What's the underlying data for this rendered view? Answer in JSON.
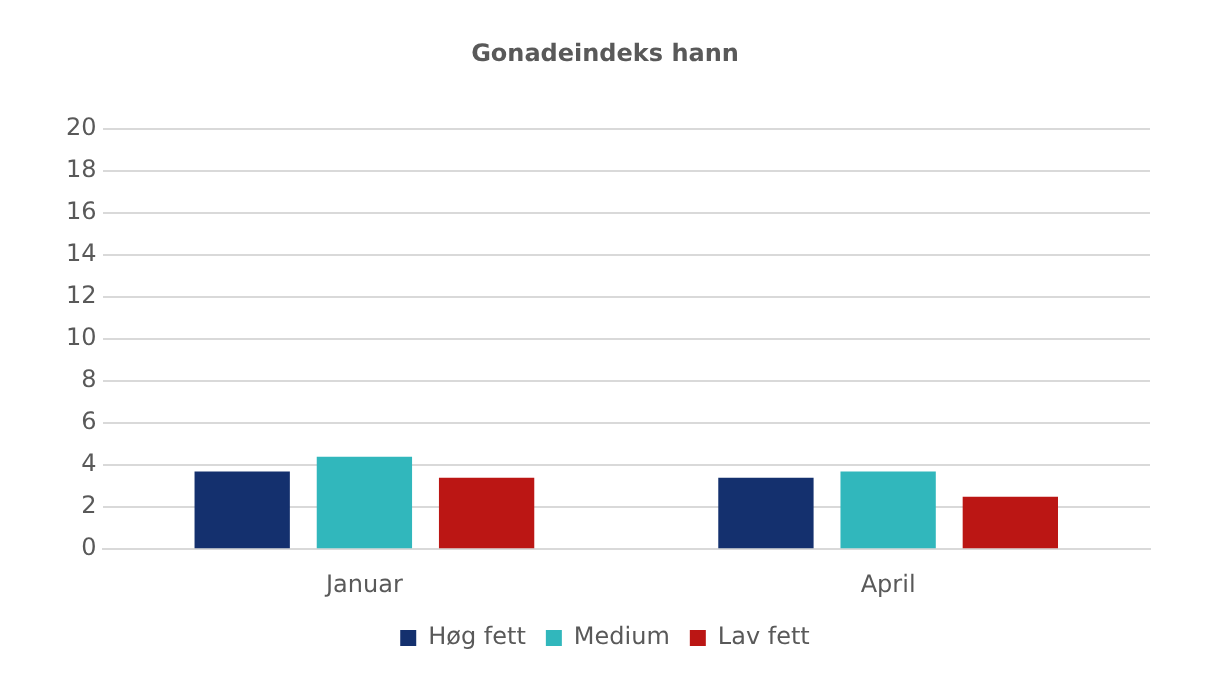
{
  "chart_data": {
    "type": "bar",
    "title": "Gonadeindeks hann",
    "categories": [
      "Januar",
      "April"
    ],
    "series": [
      {
        "name": "Høg fett",
        "color": "#14306e",
        "values": [
          3.7,
          3.4
        ]
      },
      {
        "name": "Medium",
        "color": "#31b7bc",
        "values": [
          4.4,
          3.7
        ]
      },
      {
        "name": "Lav fett",
        "color": "#bb1614",
        "values": [
          3.4,
          2.5
        ]
      }
    ],
    "ylim": [
      0,
      20
    ],
    "yticks": [
      0,
      2,
      4,
      6,
      8,
      10,
      12,
      14,
      16,
      18,
      20
    ],
    "grid": "y",
    "legend": "bottom"
  }
}
